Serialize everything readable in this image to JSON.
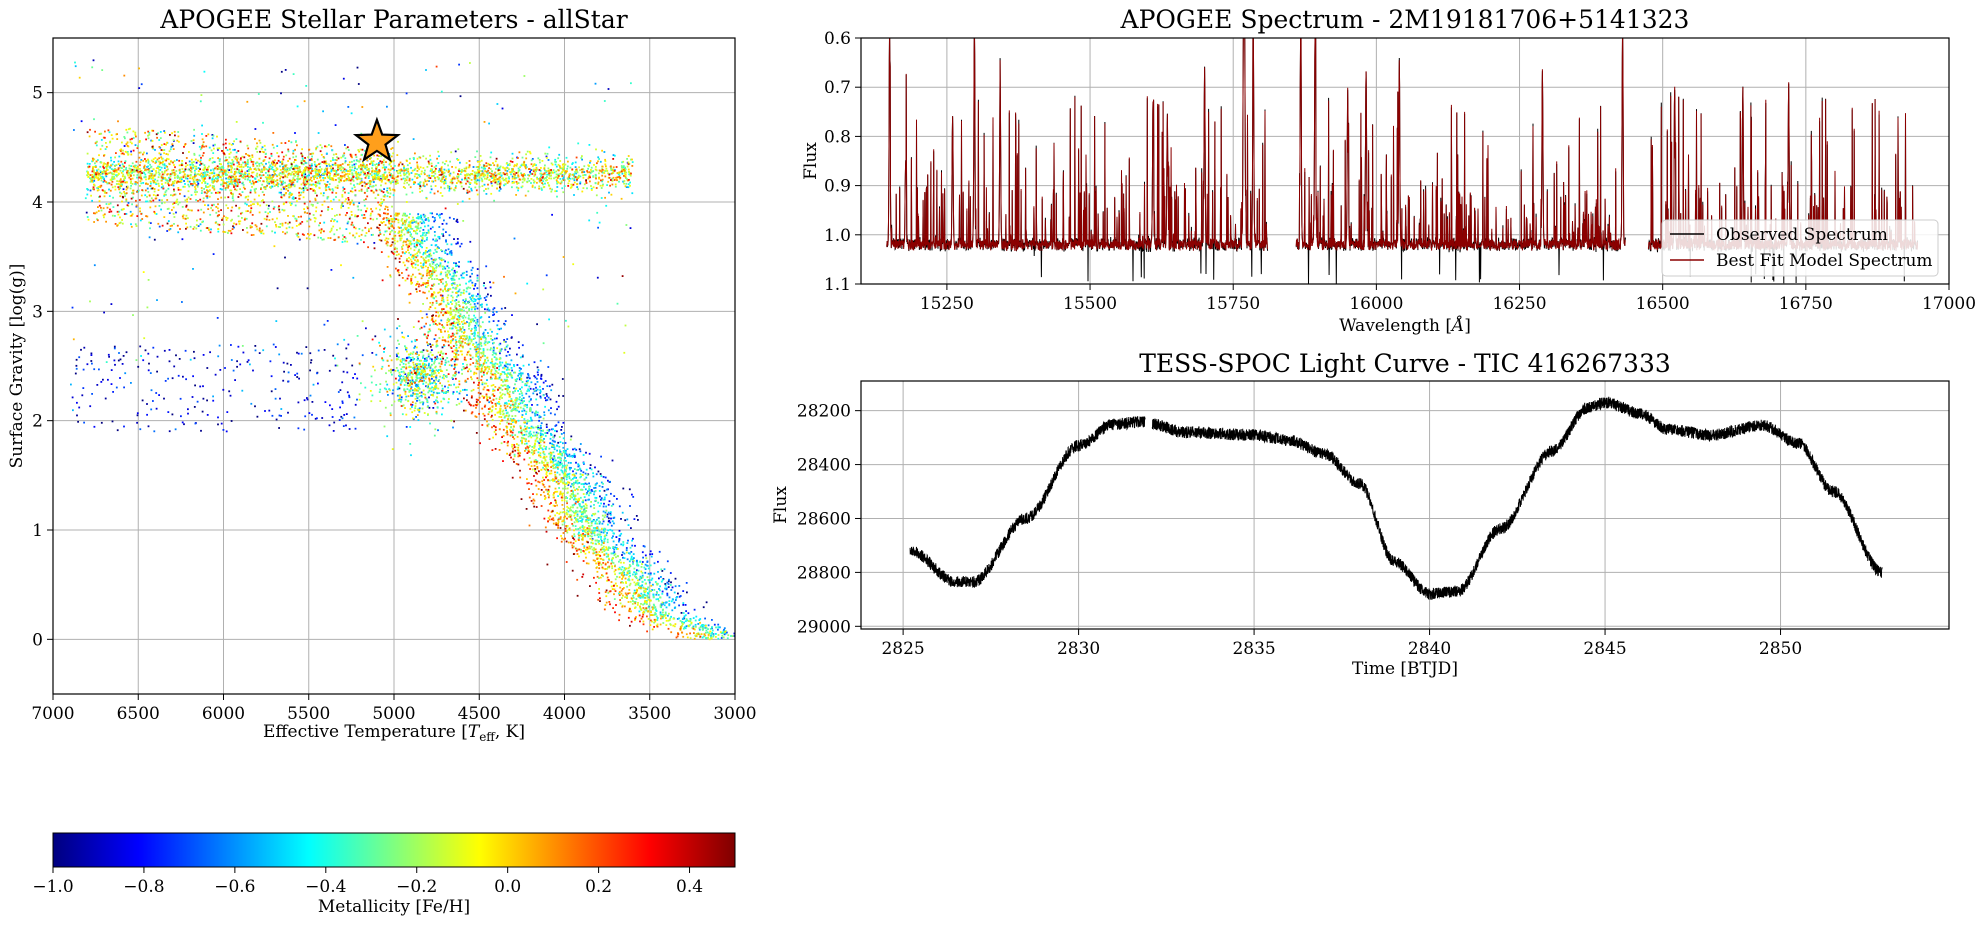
{
  "chart_data": [
    {
      "type": "scatter",
      "title": "APOGEE Stellar Parameters - allStar",
      "xlabel_prefix": "Effective Temperature [",
      "xlabel_var": "T",
      "xlabel_sub": "eff",
      "xlabel_suffix": ", K]",
      "ylabel": "Surface Gravity [log(g)]",
      "xlim": [
        7000,
        3000
      ],
      "ylim": [
        5.5,
        -0.5
      ],
      "x_ticks": [
        7000,
        6500,
        6000,
        5500,
        5000,
        4500,
        4000,
        3500,
        3000
      ],
      "x_tick_labels": [
        "7000",
        "6500",
        "6000",
        "5500",
        "5000",
        "4500",
        "4000",
        "3500",
        "3000"
      ],
      "y_ticks": [
        0,
        1,
        2,
        3,
        4,
        5
      ],
      "y_tick_labels": [
        "0",
        "1",
        "2",
        "3",
        "4",
        "5"
      ],
      "grid": true,
      "color_by": "metallicity",
      "colormap": "jet",
      "populations": [
        {
          "name": "main-sequence",
          "teff_range": [
            3600,
            6800
          ],
          "logg_at_teff": [
            [
              6800,
              4.25
            ],
            [
              5600,
              4.45
            ],
            [
              5000,
              4.55
            ],
            [
              4500,
              4.6
            ],
            [
              4000,
              4.63
            ],
            [
              3600,
              4.66
            ]
          ],
          "scatter": 0.08
        },
        {
          "name": "turnoff-subgiant",
          "teff_range": [
            5000,
            6800
          ],
          "logg_range": [
            3.6,
            4.5
          ]
        },
        {
          "name": "red-giant-branch",
          "logg_at_teff": [
            [
              5000,
              3.8
            ],
            [
              4700,
              3.0
            ],
            [
              4400,
              2.2
            ],
            [
              4000,
              1.2
            ],
            [
              3600,
              0.3
            ],
            [
              3200,
              0.0
            ]
          ],
          "metallicity_trend": "metal-rich cooler"
        },
        {
          "name": "red-clump",
          "teff_center": 4850,
          "logg_center": 2.4
        },
        {
          "name": "horizontal-branch",
          "teff_range": [
            5200,
            6900
          ],
          "logg_range": [
            1.9,
            2.7
          ],
          "metallicity": -0.9
        }
      ],
      "highlight_star": {
        "teff": 5100,
        "logg": 4.55,
        "marker": "star",
        "color": "#ff9f1c"
      }
    },
    {
      "type": "colorbar",
      "label": "Metallicity [Fe/H]",
      "range": [
        -1.0,
        0.5
      ],
      "ticks": [
        -1.0,
        -0.8,
        -0.6,
        -0.4,
        -0.2,
        0.0,
        0.2,
        0.4
      ],
      "tick_labels": [
        "−1.0",
        "−0.8",
        "−0.6",
        "−0.4",
        "−0.2",
        "0.0",
        "0.2",
        "0.4"
      ],
      "colormap": "jet"
    },
    {
      "type": "line",
      "title": "APOGEE Spectrum - 2M19181706+5141323",
      "xlabel_prefix": "Wavelength [",
      "xlabel_unit": "Å",
      "xlabel_suffix": "]",
      "ylabel": "Flux",
      "xlim": [
        15100,
        17000
      ],
      "ylim": [
        0.6,
        1.1
      ],
      "x_ticks": [
        15250,
        15500,
        15750,
        16000,
        16250,
        16500,
        16750,
        17000
      ],
      "x_tick_labels": [
        "15250",
        "15500",
        "15750",
        "16000",
        "16250",
        "16500",
        "16750",
        "17000"
      ],
      "y_ticks": [
        0.6,
        0.7,
        0.8,
        0.9,
        1.0,
        1.1
      ],
      "y_tick_labels": [
        "0.6",
        "0.7",
        "0.8",
        "0.9",
        "1.0",
        "1.1"
      ],
      "grid": true,
      "continuum": 1.02,
      "detector_chips": [
        [
          15145,
          15810
        ],
        [
          15860,
          16435
        ],
        [
          16475,
          16945
        ]
      ],
      "deep_lines": [
        [
          15150,
          0.58
        ],
        [
          15298,
          0.58
        ],
        [
          15768,
          0.57
        ],
        [
          15785,
          0.57
        ],
        [
          15868,
          0.57
        ],
        [
          15893,
          0.58
        ],
        [
          16430,
          0.58
        ],
        [
          15178,
          0.85
        ],
        [
          15343,
          0.69
        ],
        [
          15700,
          0.66
        ],
        [
          15770,
          0.61
        ],
        [
          15950,
          0.7
        ],
        [
          15982,
          0.66
        ],
        [
          16040,
          0.64
        ],
        [
          16290,
          0.67
        ],
        [
          16521,
          0.7
        ],
        [
          16640,
          0.7
        ],
        [
          16720,
          0.7
        ],
        [
          15260,
          0.76
        ],
        [
          15610,
          0.72
        ],
        [
          15635,
          0.76
        ]
      ],
      "legend_position": "lower-right",
      "series": [
        {
          "name": "Observed Spectrum",
          "color": "#000000"
        },
        {
          "name": "Best Fit Model Spectrum",
          "color": "#8b0000"
        }
      ]
    },
    {
      "type": "line",
      "title": "TESS-SPOC Light Curve - TIC 416267333",
      "xlabel": "Time [BTJD]",
      "ylabel": "Flux",
      "xlim": [
        2823.8,
        2854.8
      ],
      "ylim": [
        28090,
        29010
      ],
      "x_ticks": [
        2825,
        2830,
        2835,
        2840,
        2845,
        2850
      ],
      "x_tick_labels": [
        "2825",
        "2830",
        "2835",
        "2840",
        "2845",
        "2850"
      ],
      "y_ticks": [
        28200,
        28400,
        28600,
        28800,
        29000
      ],
      "y_tick_labels": [
        "28200",
        "28400",
        "28600",
        "28800",
        "29000"
      ],
      "grid": true,
      "time_range": [
        2825.2,
        2852.9
      ],
      "gap": [
        2831.9,
        2832.1
      ],
      "noise_amplitude": 22,
      "keypoints": [
        [
          2825.2,
          28720
        ],
        [
          2826.5,
          28835
        ],
        [
          2827.0,
          28835
        ],
        [
          2828.5,
          28600
        ],
        [
          2830.0,
          28330
        ],
        [
          2831.0,
          28250
        ],
        [
          2831.9,
          28240
        ],
        [
          2832.1,
          28250
        ],
        [
          2833.0,
          28280
        ],
        [
          2835.0,
          28290
        ],
        [
          2836.0,
          28310
        ],
        [
          2837.0,
          28360
        ],
        [
          2838.0,
          28470
        ],
        [
          2839.0,
          28760
        ],
        [
          2840.0,
          28880
        ],
        [
          2840.8,
          28870
        ],
        [
          2842.0,
          28640
        ],
        [
          2843.5,
          28350
        ],
        [
          2844.5,
          28190
        ],
        [
          2845.0,
          28170
        ],
        [
          2846.0,
          28210
        ],
        [
          2846.8,
          28270
        ],
        [
          2848.0,
          28290
        ],
        [
          2849.5,
          28255
        ],
        [
          2850.5,
          28320
        ],
        [
          2851.5,
          28500
        ],
        [
          2852.9,
          28800
        ]
      ],
      "color": "#000000"
    }
  ]
}
